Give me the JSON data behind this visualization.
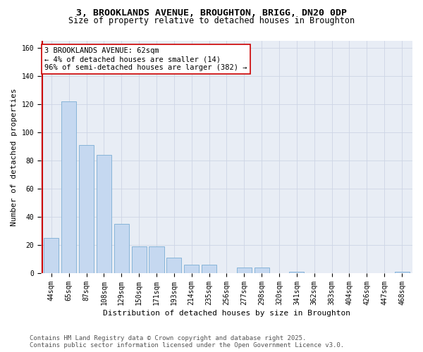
{
  "title_line1": "3, BROOKLANDS AVENUE, BROUGHTON, BRIGG, DN20 0DP",
  "title_line2": "Size of property relative to detached houses in Broughton",
  "xlabel": "Distribution of detached houses by size in Broughton",
  "ylabel": "Number of detached properties",
  "categories": [
    "44sqm",
    "65sqm",
    "87sqm",
    "108sqm",
    "129sqm",
    "150sqm",
    "171sqm",
    "193sqm",
    "214sqm",
    "235sqm",
    "256sqm",
    "277sqm",
    "298sqm",
    "320sqm",
    "341sqm",
    "362sqm",
    "383sqm",
    "404sqm",
    "426sqm",
    "447sqm",
    "468sqm"
  ],
  "values": [
    25,
    122,
    91,
    84,
    35,
    19,
    19,
    11,
    6,
    6,
    0,
    4,
    4,
    0,
    1,
    0,
    0,
    0,
    0,
    0,
    1
  ],
  "bar_color": "#c5d8f0",
  "bar_edge_color": "#7aadd4",
  "vline_color": "#cc0000",
  "annotation_text": "3 BROOKLANDS AVENUE: 62sqm\n← 4% of detached houses are smaller (14)\n96% of semi-detached houses are larger (382) →",
  "annotation_box_facecolor": "#ffffff",
  "annotation_box_edgecolor": "#cc0000",
  "ylim": [
    0,
    165
  ],
  "yticks": [
    0,
    20,
    40,
    60,
    80,
    100,
    120,
    140,
    160
  ],
  "grid_color": "#cdd5e5",
  "background_color": "#e8edf5",
  "footer_text": "Contains HM Land Registry data © Crown copyright and database right 2025.\nContains public sector information licensed under the Open Government Licence v3.0.",
  "title_fontsize": 9.5,
  "subtitle_fontsize": 8.5,
  "tick_fontsize": 7,
  "label_fontsize": 8,
  "annotation_fontsize": 7.5,
  "footer_fontsize": 6.5
}
